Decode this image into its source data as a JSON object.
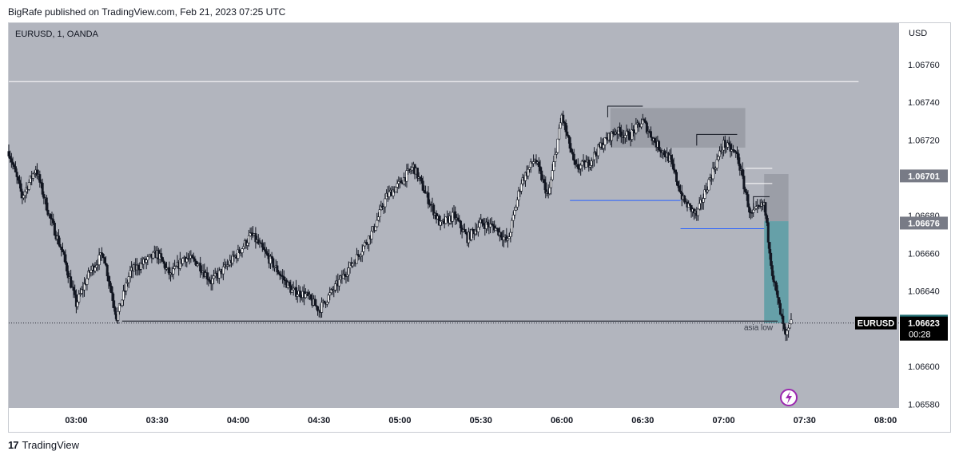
{
  "header": {
    "published_by": "BigRafe published on TradingView.com, Feb 21, 2023 07:25 UTC"
  },
  "footer": {
    "brand": "TradingView",
    "logo_glyph": "17"
  },
  "colors": {
    "plot_bg": "#b2b5be",
    "candle": "#131722",
    "zone_gray": "#9598a1",
    "zone_teal": "#4c9aa0",
    "support_line": "#363a45",
    "blue_level": "#2962ff",
    "white_line": "#ffffff",
    "price_tag_bg": "#000000",
    "tag_gray": "#787b86",
    "tag_teal": "#1e6b6f",
    "lightning": "#9c27b0"
  },
  "chart_data": {
    "type": "candlestick",
    "symbol_info": "EURUSD, 1, OANDA",
    "currency": "USD",
    "ylim": [
      1.06578,
      1.06782
    ],
    "y_ticks": [
      "1.06760",
      "1.06740",
      "1.06720",
      "1.06680",
      "1.06660",
      "1.06640",
      "1.06600",
      "1.06580"
    ],
    "x_range": [
      "02:35",
      "08:05"
    ],
    "x_ticks": [
      "03:00",
      "03:30",
      "04:00",
      "04:30",
      "05:00",
      "05:30",
      "06:00",
      "06:30",
      "07:00",
      "07:30",
      "08:00"
    ],
    "anchors": [
      [
        "02:35",
        1.06714
      ],
      [
        "02:40",
        1.0669
      ],
      [
        "02:45",
        1.06705
      ],
      [
        "02:50",
        1.0668
      ],
      [
        "02:55",
        1.0666
      ],
      [
        "03:00",
        1.06633
      ],
      [
        "03:05",
        1.0665
      ],
      [
        "03:10",
        1.0666
      ],
      [
        "03:15",
        1.06626
      ],
      [
        "03:20",
        1.0665
      ],
      [
        "03:25",
        1.06655
      ],
      [
        "03:30",
        1.0666
      ],
      [
        "03:35",
        1.06648
      ],
      [
        "03:40",
        1.06658
      ],
      [
        "03:45",
        1.06655
      ],
      [
        "03:50",
        1.06645
      ],
      [
        "03:55",
        1.06652
      ],
      [
        "04:00",
        1.0666
      ],
      [
        "04:05",
        1.0667
      ],
      [
        "04:10",
        1.0666
      ],
      [
        "04:15",
        1.0665
      ],
      [
        "04:20",
        1.0664
      ],
      [
        "04:25",
        1.06638
      ],
      [
        "04:30",
        1.0663
      ],
      [
        "04:35",
        1.0664
      ],
      [
        "04:40",
        1.0665
      ],
      [
        "04:45",
        1.0666
      ],
      [
        "04:50",
        1.06672
      ],
      [
        "04:55",
        1.0669
      ],
      [
        "05:00",
        1.06697
      ],
      [
        "05:05",
        1.06706
      ],
      [
        "05:10",
        1.0669
      ],
      [
        "05:15",
        1.06675
      ],
      [
        "05:20",
        1.0668
      ],
      [
        "05:25",
        1.06668
      ],
      [
        "05:30",
        1.06676
      ],
      [
        "05:35",
        1.06674
      ],
      [
        "05:40",
        1.06666
      ],
      [
        "05:45",
        1.06698
      ],
      [
        "05:50",
        1.0671
      ],
      [
        "05:55",
        1.0669
      ],
      [
        "06:00",
        1.06733
      ],
      [
        "06:05",
        1.06705
      ],
      [
        "06:10",
        1.06708
      ],
      [
        "06:15",
        1.06718
      ],
      [
        "06:20",
        1.06725
      ],
      [
        "06:25",
        1.06722
      ],
      [
        "06:30",
        1.0673
      ],
      [
        "06:35",
        1.06718
      ],
      [
        "06:40",
        1.0671
      ],
      [
        "06:45",
        1.06688
      ],
      [
        "06:50",
        1.0668
      ],
      [
        "06:55",
        1.067
      ],
      [
        "07:00",
        1.06718
      ],
      [
        "07:05",
        1.06712
      ],
      [
        "07:10",
        1.0668
      ],
      [
        "07:15",
        1.06686
      ],
      [
        "07:18",
        1.0665
      ],
      [
        "07:21",
        1.06628
      ],
      [
        "07:23",
        1.06615
      ],
      [
        "07:25",
        1.06623
      ]
    ],
    "zones": [
      {
        "x1": "06:18",
        "x2": "07:08",
        "y1": 1.06737,
        "y2": 1.06716,
        "color": "gray"
      },
      {
        "x1": "07:15",
        "x2": "07:24",
        "y1": 1.06702,
        "y2": 1.06677,
        "color": "gray"
      },
      {
        "x1": "07:15",
        "x2": "07:24",
        "y1": 1.06677,
        "y2": 1.06623,
        "color": "teal"
      }
    ],
    "levels": [
      {
        "x1": "02:35",
        "x2": "07:50",
        "y": 1.06751,
        "color": "white"
      },
      {
        "x1": "03:17",
        "x2": "07:20",
        "y": 1.06624,
        "color": "dark",
        "label": "asia low"
      },
      {
        "x1": "06:03",
        "x2": "06:44",
        "y": 1.06688,
        "color": "blue"
      },
      {
        "x1": "06:44",
        "x2": "07:11",
        "y": 1.06673,
        "color": "blue"
      },
      {
        "x1": "07:10",
        "x2": "07:15",
        "y": 1.06673,
        "color": "blue"
      },
      {
        "x1": "07:08",
        "x2": "07:18",
        "y": 1.06705,
        "color": "white"
      },
      {
        "x1": "07:08",
        "x2": "07:18",
        "y": 1.06697,
        "color": "white"
      }
    ],
    "brackets": [
      {
        "x1": "06:17",
        "x2": "06:30",
        "y": 1.06738
      },
      {
        "x1": "06:50",
        "x2": "07:05",
        "y": 1.06723
      },
      {
        "x1": "07:11",
        "x2": "07:17",
        "y": 1.0669
      }
    ],
    "price_tags": [
      {
        "value": "1.06701",
        "y": 1.06701,
        "style": "gray"
      },
      {
        "value": "1.06676",
        "y": 1.06676,
        "style": "gray"
      },
      {
        "value": "1.06624",
        "y": 1.06624,
        "style": "teal"
      }
    ],
    "last_price": {
      "symbol": "EURUSD",
      "value": "1.06623",
      "countdown": "00:28",
      "y": 1.06623
    }
  }
}
